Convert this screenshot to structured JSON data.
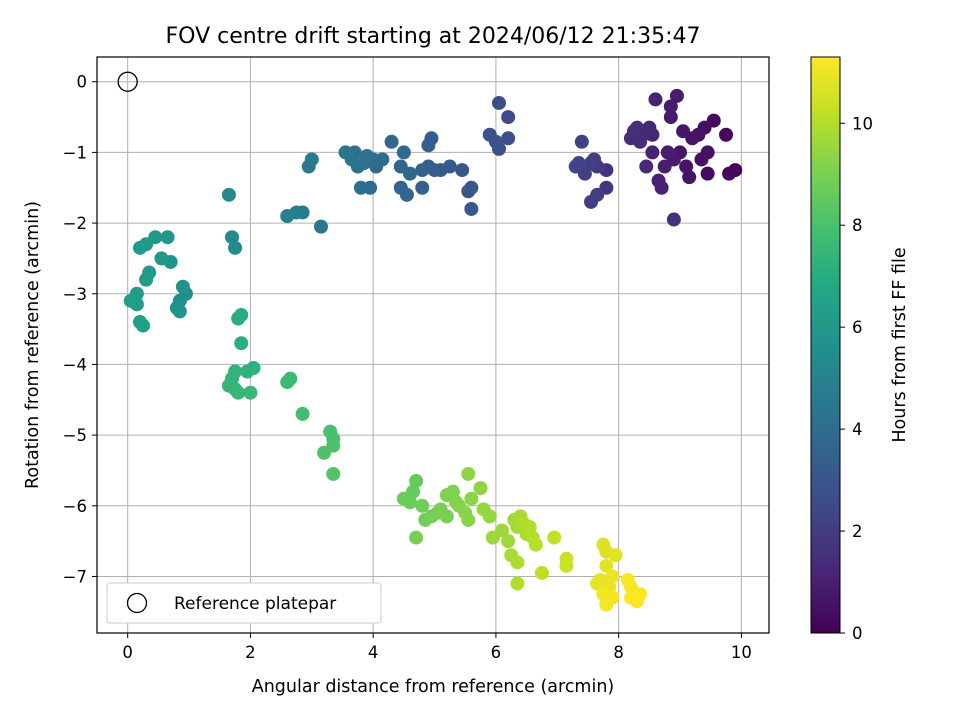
{
  "chart_data": {
    "type": "scatter",
    "title": "FOV centre drift starting at 2024/06/12 21:35:47",
    "xlabel": "Angular distance from reference (arcmin)",
    "ylabel": "Rotation from reference (arcmin)",
    "xlim": [
      -0.5,
      10.45
    ],
    "ylim": [
      -7.8,
      0.35
    ],
    "xticks": [
      0,
      2,
      4,
      6,
      8,
      10
    ],
    "yticks": [
      0,
      -1,
      -2,
      -3,
      -4,
      -5,
      -6,
      -7
    ],
    "grid": true,
    "legend": {
      "position": "lower-left",
      "entries": [
        "Reference platepar"
      ]
    },
    "reference_point": {
      "x": 0,
      "y": 0,
      "marker": "open-circle"
    },
    "colorbar": {
      "label": "Hours from first FF file",
      "colormap": "viridis",
      "range": [
        0,
        11.3
      ],
      "ticks": [
        0,
        2,
        4,
        6,
        8,
        10
      ]
    },
    "points": [
      {
        "x": 9.9,
        "y": -1.25,
        "c": 0.1
      },
      {
        "x": 9.75,
        "y": -0.75,
        "c": 0.2
      },
      {
        "x": 9.55,
        "y": -0.55,
        "c": 0.3
      },
      {
        "x": 9.8,
        "y": -1.3,
        "c": 0.3
      },
      {
        "x": 9.4,
        "y": -0.65,
        "c": 0.4
      },
      {
        "x": 9.45,
        "y": -1.3,
        "c": 0.4
      },
      {
        "x": 9.35,
        "y": -1.1,
        "c": 0.5
      },
      {
        "x": 9.3,
        "y": -0.75,
        "c": 0.5
      },
      {
        "x": 9.45,
        "y": -1.0,
        "c": 0.5
      },
      {
        "x": 9.2,
        "y": -0.8,
        "c": 0.6
      },
      {
        "x": 9.1,
        "y": -1.2,
        "c": 0.6
      },
      {
        "x": 9.15,
        "y": -1.35,
        "c": 0.6
      },
      {
        "x": 9.05,
        "y": -0.7,
        "c": 0.7
      },
      {
        "x": 9.0,
        "y": -1.0,
        "c": 0.7
      },
      {
        "x": 8.9,
        "y": -1.1,
        "c": 0.8
      },
      {
        "x": 8.85,
        "y": -0.5,
        "c": 0.8
      },
      {
        "x": 8.95,
        "y": -0.2,
        "c": 0.9
      },
      {
        "x": 8.85,
        "y": -0.35,
        "c": 0.9
      },
      {
        "x": 8.8,
        "y": -1.0,
        "c": 0.9
      },
      {
        "x": 8.75,
        "y": -1.2,
        "c": 1.0
      },
      {
        "x": 8.65,
        "y": -1.4,
        "c": 1.0
      },
      {
        "x": 8.7,
        "y": -1.5,
        "c": 1.1
      },
      {
        "x": 8.55,
        "y": -1.0,
        "c": 1.1
      },
      {
        "x": 8.6,
        "y": -0.25,
        "c": 1.1
      },
      {
        "x": 8.55,
        "y": -0.75,
        "c": 1.2
      },
      {
        "x": 8.5,
        "y": -0.65,
        "c": 1.2
      },
      {
        "x": 8.4,
        "y": -0.75,
        "c": 1.3
      },
      {
        "x": 8.45,
        "y": -1.2,
        "c": 1.3
      },
      {
        "x": 8.35,
        "y": -0.85,
        "c": 1.4
      },
      {
        "x": 8.3,
        "y": -0.65,
        "c": 1.4
      },
      {
        "x": 8.25,
        "y": -0.7,
        "c": 1.5
      },
      {
        "x": 8.2,
        "y": -0.8,
        "c": 1.5
      },
      {
        "x": 8.9,
        "y": -1.95,
        "c": 1.6
      },
      {
        "x": 7.8,
        "y": -1.25,
        "c": 1.7
      },
      {
        "x": 7.8,
        "y": -1.5,
        "c": 1.8
      },
      {
        "x": 7.65,
        "y": -1.2,
        "c": 1.9
      },
      {
        "x": 7.6,
        "y": -1.1,
        "c": 1.9
      },
      {
        "x": 7.65,
        "y": -1.6,
        "c": 2.0
      },
      {
        "x": 7.55,
        "y": -1.7,
        "c": 2.0
      },
      {
        "x": 7.55,
        "y": -1.15,
        "c": 2.1
      },
      {
        "x": 7.45,
        "y": -1.3,
        "c": 2.1
      },
      {
        "x": 7.4,
        "y": -0.85,
        "c": 2.2
      },
      {
        "x": 7.35,
        "y": -1.15,
        "c": 2.3
      },
      {
        "x": 7.3,
        "y": -1.2,
        "c": 2.3
      },
      {
        "x": 6.2,
        "y": -0.5,
        "c": 2.6
      },
      {
        "x": 6.2,
        "y": -0.8,
        "c": 2.7
      },
      {
        "x": 6.05,
        "y": -0.3,
        "c": 2.7
      },
      {
        "x": 6.0,
        "y": -0.85,
        "c": 2.8
      },
      {
        "x": 6.05,
        "y": -0.95,
        "c": 2.8
      },
      {
        "x": 5.9,
        "y": -0.75,
        "c": 2.9
      },
      {
        "x": 5.6,
        "y": -1.5,
        "c": 3.0
      },
      {
        "x": 5.55,
        "y": -1.55,
        "c": 3.0
      },
      {
        "x": 5.6,
        "y": -1.8,
        "c": 3.1
      },
      {
        "x": 5.45,
        "y": -1.25,
        "c": 3.1
      },
      {
        "x": 5.25,
        "y": -1.2,
        "c": 3.2
      },
      {
        "x": 5.1,
        "y": -1.25,
        "c": 3.2
      },
      {
        "x": 5.0,
        "y": -1.25,
        "c": 3.3
      },
      {
        "x": 4.95,
        "y": -0.8,
        "c": 3.3
      },
      {
        "x": 4.9,
        "y": -1.2,
        "c": 3.4
      },
      {
        "x": 4.9,
        "y": -0.9,
        "c": 3.4
      },
      {
        "x": 4.8,
        "y": -1.25,
        "c": 3.5
      },
      {
        "x": 4.8,
        "y": -1.5,
        "c": 3.5
      },
      {
        "x": 4.55,
        "y": -1.6,
        "c": 3.6
      },
      {
        "x": 4.45,
        "y": -1.5,
        "c": 3.6
      },
      {
        "x": 4.6,
        "y": -1.3,
        "c": 3.7
      },
      {
        "x": 4.45,
        "y": -1.2,
        "c": 3.7
      },
      {
        "x": 4.5,
        "y": -1.0,
        "c": 3.8
      },
      {
        "x": 4.3,
        "y": -0.85,
        "c": 3.8
      },
      {
        "x": 4.15,
        "y": -1.1,
        "c": 3.9
      },
      {
        "x": 4.05,
        "y": -1.2,
        "c": 3.9
      },
      {
        "x": 4.0,
        "y": -1.1,
        "c": 4.0
      },
      {
        "x": 3.95,
        "y": -1.5,
        "c": 4.0
      },
      {
        "x": 3.8,
        "y": -1.5,
        "c": 4.1
      },
      {
        "x": 3.85,
        "y": -1.15,
        "c": 4.1
      },
      {
        "x": 3.9,
        "y": -1.05,
        "c": 4.2
      },
      {
        "x": 3.7,
        "y": -1.0,
        "c": 4.2
      },
      {
        "x": 3.75,
        "y": -1.2,
        "c": 4.3
      },
      {
        "x": 3.65,
        "y": -1.1,
        "c": 4.3
      },
      {
        "x": 3.55,
        "y": -1.0,
        "c": 4.4
      },
      {
        "x": 3.15,
        "y": -2.05,
        "c": 4.5
      },
      {
        "x": 3.0,
        "y": -1.1,
        "c": 4.6
      },
      {
        "x": 2.95,
        "y": -1.2,
        "c": 4.6
      },
      {
        "x": 2.85,
        "y": -1.85,
        "c": 4.7
      },
      {
        "x": 2.75,
        "y": -1.85,
        "c": 4.8
      },
      {
        "x": 2.6,
        "y": -1.9,
        "c": 4.9
      },
      {
        "x": 1.65,
        "y": -1.6,
        "c": 5.3
      },
      {
        "x": 1.75,
        "y": -2.35,
        "c": 5.4
      },
      {
        "x": 1.7,
        "y": -2.2,
        "c": 5.4
      },
      {
        "x": 0.95,
        "y": -3.0,
        "c": 5.6
      },
      {
        "x": 0.85,
        "y": -3.1,
        "c": 5.6
      },
      {
        "x": 0.9,
        "y": -2.9,
        "c": 5.7
      },
      {
        "x": 0.85,
        "y": -3.25,
        "c": 5.7
      },
      {
        "x": 0.8,
        "y": -3.2,
        "c": 5.8
      },
      {
        "x": 0.7,
        "y": -2.55,
        "c": 5.8
      },
      {
        "x": 0.55,
        "y": -2.5,
        "c": 5.9
      },
      {
        "x": 0.65,
        "y": -2.2,
        "c": 5.9
      },
      {
        "x": 0.45,
        "y": -2.2,
        "c": 6.0
      },
      {
        "x": 0.3,
        "y": -2.3,
        "c": 6.0
      },
      {
        "x": 0.2,
        "y": -2.35,
        "c": 6.1
      },
      {
        "x": 0.35,
        "y": -2.7,
        "c": 6.1
      },
      {
        "x": 0.3,
        "y": -2.8,
        "c": 6.2
      },
      {
        "x": 0.15,
        "y": -3.0,
        "c": 6.2
      },
      {
        "x": 0.05,
        "y": -3.1,
        "c": 6.3
      },
      {
        "x": 0.15,
        "y": -3.15,
        "c": 6.3
      },
      {
        "x": 0.2,
        "y": -3.4,
        "c": 6.4
      },
      {
        "x": 0.25,
        "y": -3.45,
        "c": 6.4
      },
      {
        "x": 1.85,
        "y": -3.3,
        "c": 7.0
      },
      {
        "x": 1.8,
        "y": -3.35,
        "c": 7.0
      },
      {
        "x": 1.85,
        "y": -3.7,
        "c": 7.1
      },
      {
        "x": 2.05,
        "y": -4.05,
        "c": 7.2
      },
      {
        "x": 1.95,
        "y": -4.1,
        "c": 7.2
      },
      {
        "x": 1.75,
        "y": -4.1,
        "c": 7.3
      },
      {
        "x": 1.7,
        "y": -4.2,
        "c": 7.3
      },
      {
        "x": 1.65,
        "y": -4.3,
        "c": 7.4
      },
      {
        "x": 1.75,
        "y": -4.35,
        "c": 7.4
      },
      {
        "x": 1.8,
        "y": -4.4,
        "c": 7.5
      },
      {
        "x": 2.0,
        "y": -4.4,
        "c": 7.5
      },
      {
        "x": 2.65,
        "y": -4.2,
        "c": 7.6
      },
      {
        "x": 2.6,
        "y": -4.25,
        "c": 7.6
      },
      {
        "x": 2.85,
        "y": -4.7,
        "c": 7.8
      },
      {
        "x": 3.3,
        "y": -4.95,
        "c": 8.0
      },
      {
        "x": 3.35,
        "y": -5.05,
        "c": 8.0
      },
      {
        "x": 3.35,
        "y": -5.15,
        "c": 8.1
      },
      {
        "x": 3.2,
        "y": -5.25,
        "c": 8.1
      },
      {
        "x": 3.35,
        "y": -5.55,
        "c": 8.2
      },
      {
        "x": 4.7,
        "y": -5.65,
        "c": 8.6
      },
      {
        "x": 4.65,
        "y": -5.8,
        "c": 8.6
      },
      {
        "x": 4.5,
        "y": -5.9,
        "c": 8.7
      },
      {
        "x": 4.6,
        "y": -5.95,
        "c": 8.7
      },
      {
        "x": 4.8,
        "y": -6.0,
        "c": 8.8
      },
      {
        "x": 4.85,
        "y": -6.2,
        "c": 8.8
      },
      {
        "x": 4.95,
        "y": -6.15,
        "c": 8.9
      },
      {
        "x": 5.05,
        "y": -6.1,
        "c": 8.9
      },
      {
        "x": 5.1,
        "y": -6.05,
        "c": 9.0
      },
      {
        "x": 5.2,
        "y": -6.15,
        "c": 9.0
      },
      {
        "x": 5.2,
        "y": -5.85,
        "c": 9.1
      },
      {
        "x": 5.3,
        "y": -5.8,
        "c": 9.1
      },
      {
        "x": 5.35,
        "y": -5.95,
        "c": 9.2
      },
      {
        "x": 5.4,
        "y": -6.0,
        "c": 9.2
      },
      {
        "x": 5.5,
        "y": -6.1,
        "c": 9.3
      },
      {
        "x": 5.55,
        "y": -6.2,
        "c": 9.3
      },
      {
        "x": 5.6,
        "y": -5.9,
        "c": 9.3
      },
      {
        "x": 5.55,
        "y": -5.55,
        "c": 9.4
      },
      {
        "x": 5.75,
        "y": -5.75,
        "c": 9.4
      },
      {
        "x": 4.7,
        "y": -6.45,
        "c": 9.0
      },
      {
        "x": 5.8,
        "y": -6.05,
        "c": 9.5
      },
      {
        "x": 5.9,
        "y": -6.15,
        "c": 9.5
      },
      {
        "x": 5.95,
        "y": -6.45,
        "c": 9.6
      },
      {
        "x": 6.1,
        "y": -6.35,
        "c": 9.6
      },
      {
        "x": 6.2,
        "y": -6.5,
        "c": 9.7
      },
      {
        "x": 6.3,
        "y": -6.2,
        "c": 9.7
      },
      {
        "x": 6.35,
        "y": -6.3,
        "c": 9.8
      },
      {
        "x": 6.4,
        "y": -6.15,
        "c": 9.8
      },
      {
        "x": 6.45,
        "y": -6.25,
        "c": 9.9
      },
      {
        "x": 6.5,
        "y": -6.4,
        "c": 9.9
      },
      {
        "x": 6.55,
        "y": -6.3,
        "c": 10.0
      },
      {
        "x": 6.6,
        "y": -6.45,
        "c": 10.0
      },
      {
        "x": 6.65,
        "y": -6.55,
        "c": 10.1
      },
      {
        "x": 6.25,
        "y": -6.7,
        "c": 9.8
      },
      {
        "x": 6.35,
        "y": -6.8,
        "c": 9.9
      },
      {
        "x": 6.35,
        "y": -7.1,
        "c": 10.0
      },
      {
        "x": 6.75,
        "y": -6.95,
        "c": 10.2
      },
      {
        "x": 6.95,
        "y": -6.45,
        "c": 10.3
      },
      {
        "x": 7.15,
        "y": -6.75,
        "c": 10.4
      },
      {
        "x": 7.15,
        "y": -6.85,
        "c": 10.4
      },
      {
        "x": 7.75,
        "y": -6.55,
        "c": 10.7
      },
      {
        "x": 7.8,
        "y": -6.65,
        "c": 10.7
      },
      {
        "x": 7.95,
        "y": -6.7,
        "c": 10.8
      },
      {
        "x": 7.8,
        "y": -6.85,
        "c": 10.8
      },
      {
        "x": 7.7,
        "y": -7.05,
        "c": 10.9
      },
      {
        "x": 7.65,
        "y": -7.1,
        "c": 10.9
      },
      {
        "x": 7.9,
        "y": -7.0,
        "c": 11.0
      },
      {
        "x": 7.85,
        "y": -7.15,
        "c": 11.0
      },
      {
        "x": 7.75,
        "y": -7.25,
        "c": 11.1
      },
      {
        "x": 7.8,
        "y": -7.4,
        "c": 11.1
      },
      {
        "x": 7.9,
        "y": -7.3,
        "c": 11.1
      },
      {
        "x": 8.15,
        "y": -7.05,
        "c": 11.2
      },
      {
        "x": 8.2,
        "y": -7.15,
        "c": 11.2
      },
      {
        "x": 8.25,
        "y": -7.3,
        "c": 11.2
      },
      {
        "x": 8.35,
        "y": -7.25,
        "c": 11.3
      },
      {
        "x": 8.3,
        "y": -7.35,
        "c": 11.3
      },
      {
        "x": 8.2,
        "y": -7.3,
        "c": 11.3
      }
    ]
  }
}
